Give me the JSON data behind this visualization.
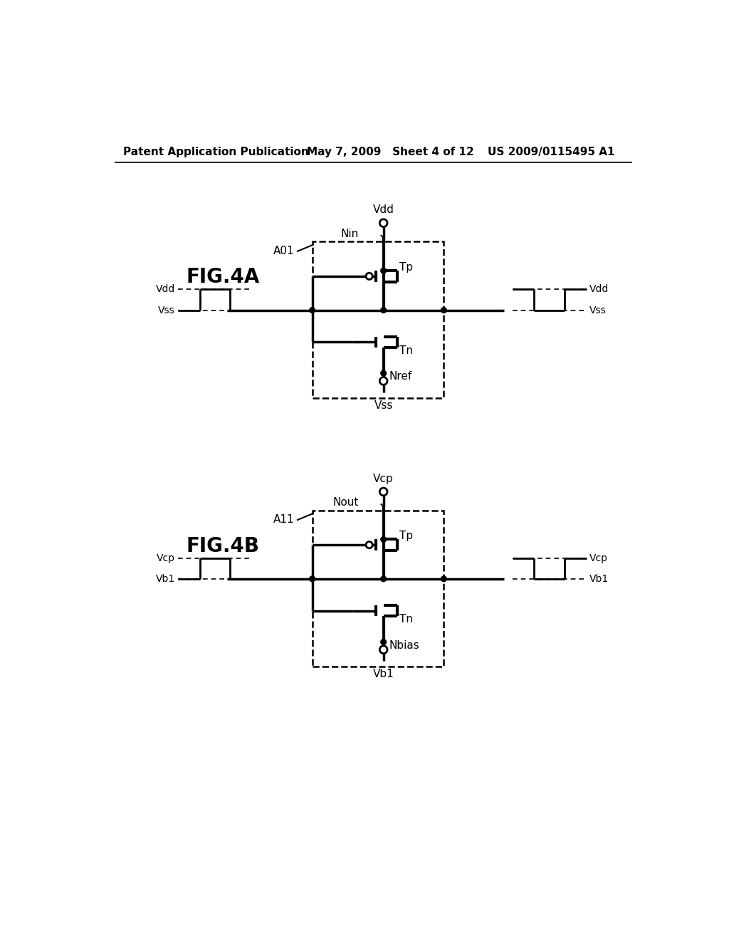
{
  "bg_color": "#ffffff",
  "header_left": "Patent Application Publication",
  "header_mid": "May 7, 2009   Sheet 4 of 12",
  "header_right": "US 2009/0115495 A1",
  "fig4a_label": "FIG.4A",
  "fig4b_label": "FIG.4B",
  "fig4a_box_label": "A01",
  "fig4b_box_label": "A11",
  "node_nin": "Nin",
  "node_nout": "Nout",
  "node_nref": "Nref",
  "node_nbias": "Nbias",
  "tp_label": "Tp",
  "tn_label": "Tn",
  "vdd_label": "Vdd",
  "vss_label": "Vss",
  "vcp_label": "Vcp",
  "vb1_label": "Vb1"
}
